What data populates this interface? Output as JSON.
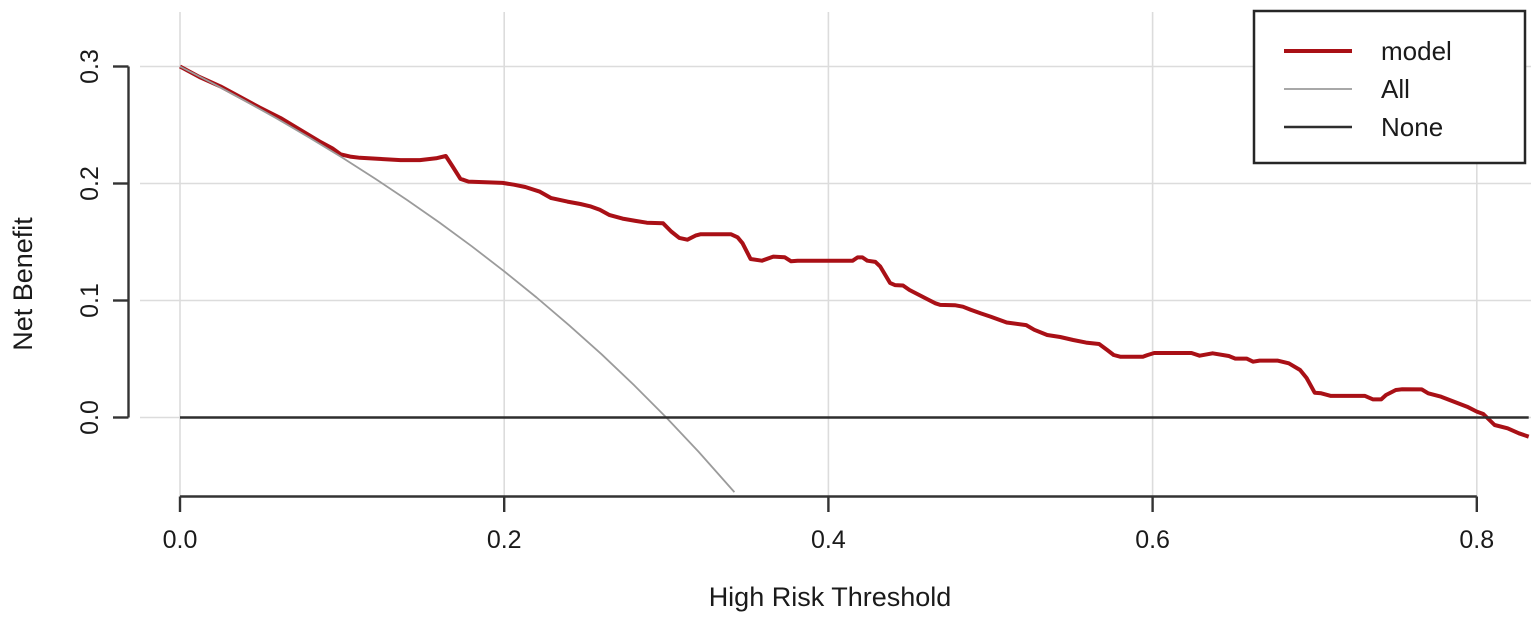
{
  "chart_data": {
    "type": "line",
    "title": "",
    "xlabel": "High Risk Threshold",
    "ylabel": "Net Benefit",
    "xlim": [
      0.0,
      0.836
    ],
    "ylim": [
      -0.068,
      0.31
    ],
    "grid": true,
    "legend_position": "top-right",
    "x_ticks": [
      0.0,
      0.2,
      0.4,
      0.6,
      0.8
    ],
    "x_tick_labels": [
      "0.0",
      "0.2",
      "0.4",
      "0.6",
      "0.8"
    ],
    "y_ticks": [
      0.0,
      0.1,
      0.2,
      0.3
    ],
    "y_tick_labels": [
      "0.0",
      "0.1",
      "0.2",
      "0.3"
    ],
    "series": [
      {
        "name": "model",
        "color": "#a91016",
        "stroke_width": 4,
        "points": [
          [
            0.0,
            0.3
          ],
          [
            0.012,
            0.291
          ],
          [
            0.025,
            0.283
          ],
          [
            0.037,
            0.274
          ],
          [
            0.049,
            0.265
          ],
          [
            0.062,
            0.256
          ],
          [
            0.074,
            0.246
          ],
          [
            0.086,
            0.236
          ],
          [
            0.094,
            0.23
          ],
          [
            0.099,
            0.225
          ],
          [
            0.105,
            0.223
          ],
          [
            0.111,
            0.222
          ],
          [
            0.123,
            0.221
          ],
          [
            0.136,
            0.22
          ],
          [
            0.148,
            0.22
          ],
          [
            0.158,
            0.2215
          ],
          [
            0.164,
            0.2235
          ],
          [
            0.168,
            0.215
          ],
          [
            0.173,
            0.204
          ],
          [
            0.178,
            0.2016
          ],
          [
            0.199,
            0.2005
          ],
          [
            0.206,
            0.199
          ],
          [
            0.213,
            0.197
          ],
          [
            0.222,
            0.193
          ],
          [
            0.229,
            0.1875
          ],
          [
            0.239,
            0.1845
          ],
          [
            0.247,
            0.1825
          ],
          [
            0.253,
            0.1805
          ],
          [
            0.259,
            0.1775
          ],
          [
            0.265,
            0.173
          ],
          [
            0.273,
            0.17
          ],
          [
            0.281,
            0.168
          ],
          [
            0.288,
            0.1665
          ],
          [
            0.298,
            0.166
          ],
          [
            0.303,
            0.159
          ],
          [
            0.308,
            0.1535
          ],
          [
            0.313,
            0.152
          ],
          [
            0.318,
            0.1555
          ],
          [
            0.321,
            0.1566
          ],
          [
            0.34,
            0.1566
          ],
          [
            0.344,
            0.154
          ],
          [
            0.347,
            0.149
          ],
          [
            0.352,
            0.1355
          ],
          [
            0.359,
            0.134
          ],
          [
            0.366,
            0.1375
          ],
          [
            0.373,
            0.137
          ],
          [
            0.377,
            0.1335
          ],
          [
            0.381,
            0.134
          ],
          [
            0.415,
            0.134
          ],
          [
            0.418,
            0.1368
          ],
          [
            0.421,
            0.1368
          ],
          [
            0.424,
            0.134
          ],
          [
            0.429,
            0.133
          ],
          [
            0.432,
            0.129
          ],
          [
            0.438,
            0.115
          ],
          [
            0.441,
            0.1132
          ],
          [
            0.446,
            0.1128
          ],
          [
            0.45,
            0.109
          ],
          [
            0.456,
            0.1047
          ],
          [
            0.462,
            0.1004
          ],
          [
            0.466,
            0.0976
          ],
          [
            0.469,
            0.0962
          ],
          [
            0.478,
            0.096
          ],
          [
            0.483,
            0.0947
          ],
          [
            0.488,
            0.092
          ],
          [
            0.494,
            0.089
          ],
          [
            0.5,
            0.0862
          ],
          [
            0.51,
            0.0812
          ],
          [
            0.522,
            0.079
          ],
          [
            0.527,
            0.075
          ],
          [
            0.535,
            0.0705
          ],
          [
            0.543,
            0.0688
          ],
          [
            0.551,
            0.0662
          ],
          [
            0.559,
            0.064
          ],
          [
            0.567,
            0.0628
          ],
          [
            0.572,
            0.0577
          ],
          [
            0.576,
            0.0534
          ],
          [
            0.58,
            0.052
          ],
          [
            0.594,
            0.052
          ],
          [
            0.597,
            0.0534
          ],
          [
            0.601,
            0.0551
          ],
          [
            0.624,
            0.0551
          ],
          [
            0.629,
            0.0528
          ],
          [
            0.637,
            0.0549
          ],
          [
            0.647,
            0.0526
          ],
          [
            0.651,
            0.0503
          ],
          [
            0.658,
            0.0503
          ],
          [
            0.662,
            0.0477
          ],
          [
            0.666,
            0.0486
          ],
          [
            0.677,
            0.0486
          ],
          [
            0.684,
            0.0463
          ],
          [
            0.691,
            0.0406
          ],
          [
            0.695,
            0.0338
          ],
          [
            0.7,
            0.0212
          ],
          [
            0.704,
            0.0207
          ],
          [
            0.71,
            0.0185
          ],
          [
            0.731,
            0.0185
          ],
          [
            0.736,
            0.0155
          ],
          [
            0.741,
            0.0155
          ],
          [
            0.744,
            0.0192
          ],
          [
            0.75,
            0.0235
          ],
          [
            0.754,
            0.0241
          ],
          [
            0.766,
            0.024
          ],
          [
            0.77,
            0.0207
          ],
          [
            0.778,
            0.0178
          ],
          [
            0.786,
            0.0135
          ],
          [
            0.794,
            0.0092
          ],
          [
            0.8,
            0.005
          ],
          [
            0.804,
            0.003
          ],
          [
            0.811,
            -0.0064
          ],
          [
            0.819,
            -0.0092
          ],
          [
            0.826,
            -0.0135
          ],
          [
            0.832,
            -0.0164
          ]
        ]
      },
      {
        "name": "All",
        "color": "#9b9b9b",
        "stroke_width": 1.8,
        "points": [
          [
            0.0,
            0.3
          ],
          [
            0.02,
            0.2857
          ],
          [
            0.04,
            0.2708
          ],
          [
            0.06,
            0.2553
          ],
          [
            0.08,
            0.2391
          ],
          [
            0.1,
            0.2222
          ],
          [
            0.12,
            0.2045
          ],
          [
            0.14,
            0.186
          ],
          [
            0.16,
            0.1667
          ],
          [
            0.18,
            0.1463
          ],
          [
            0.2,
            0.125
          ],
          [
            0.22,
            0.1026
          ],
          [
            0.24,
            0.0789
          ],
          [
            0.26,
            0.0541
          ],
          [
            0.28,
            0.0278
          ],
          [
            0.3,
            0.0
          ],
          [
            0.32,
            -0.0294
          ],
          [
            0.342,
            -0.0638
          ]
        ]
      },
      {
        "name": "None",
        "color": "#2e2e2e",
        "stroke_width": 2.4,
        "points": [
          [
            0.0,
            0.0
          ],
          [
            0.832,
            0.0
          ]
        ]
      }
    ]
  },
  "colors": {
    "model_line": "#a91016",
    "all_line": "#9b9b9b",
    "none_line": "#2e2e2e",
    "gridline": "#dcdcdc",
    "axis": "#333333",
    "text": "#1a1a1a",
    "background": "#ffffff"
  }
}
